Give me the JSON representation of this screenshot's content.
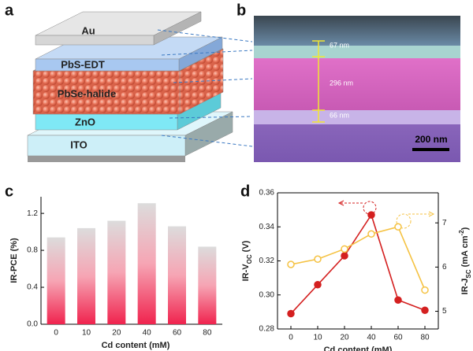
{
  "figure": {
    "panels": [
      "a",
      "b",
      "c",
      "d"
    ]
  },
  "diagram": {
    "layers": [
      "Au",
      "PbS-EDT",
      "PbSe-halide",
      "ZnO",
      "ITO"
    ]
  },
  "micrograph": {
    "thicknesses": [
      "67 nm",
      "296 nm",
      "66 nm"
    ],
    "scale_bar": "200 nm"
  },
  "chart_data": [
    {
      "type": "bar",
      "categories": [
        "0",
        "10",
        "20",
        "40",
        "60",
        "80"
      ],
      "values": [
        0.94,
        1.04,
        1.12,
        1.31,
        1.06,
        0.84
      ],
      "color": "#f0234e",
      "ylim": [
        0,
        1.38
      ],
      "yticks": [
        {
          "value": 0,
          "label": "0.0"
        },
        0.4,
        0.8,
        1.2
      ],
      "xlabel": "Cd content (mM)",
      "ylabel": "IR-PCE (%)"
    },
    {
      "type": "line",
      "categories": [
        "0",
        "10",
        "20",
        "40",
        "60",
        "80"
      ],
      "series": [
        {
          "color": "#d42020",
          "values": [
            0.289,
            0.306,
            0.323,
            0.347,
            0.297,
            0.291
          ]
        },
        {
          "color": "#f5c242",
          "axis": "y2",
          "values": [
            6.06,
            6.18,
            6.41,
            6.75,
            6.91,
            5.48
          ]
        }
      ],
      "ylim": [
        0.28,
        0.36
      ],
      "yticks": [
        0.28,
        {
          "value": 0.3,
          "label": "0.30"
        },
        0.32,
        0.34,
        0.36
      ],
      "y2lim": [
        4.6,
        7.68
      ],
      "y2ticks": [
        5,
        6,
        7
      ],
      "xlabel": "Cd content (mM)",
      "ylabel": {
        "main": "IR-V",
        "sub": "OC",
        "rest": " (V)"
      },
      "y2label": {
        "main": "IR-J",
        "sub": "SC",
        "rest": " (mA cm",
        "sup": "-2",
        "end": ")"
      }
    }
  ]
}
